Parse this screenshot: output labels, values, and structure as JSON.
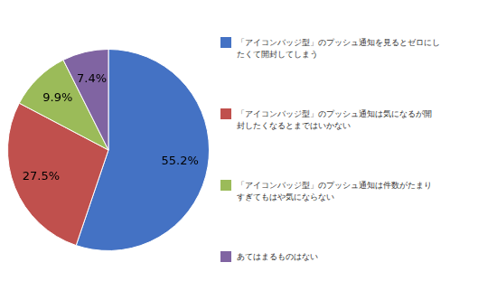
{
  "chart_data": {
    "type": "pie",
    "categories": [
      "「アイコンバッジ型」のプッシュ通知を見るとゼロにし\nたくて開封してしまう",
      "「アイコンバッジ型」のプッシュ通知は気になるが開\n封したくなるとまではいかない",
      "「アイコンバッジ型」のプッシュ通知は件数がたまり\nすぎてもはや気にならない",
      "あてはまるものはない"
    ],
    "values": [
      55.2,
      27.5,
      9.9,
      7.4
    ],
    "value_labels": [
      "55.2%",
      "27.5%",
      "9.9%",
      "7.4%"
    ],
    "colors": [
      "#4472C4",
      "#C0504D",
      "#9BBB59",
      "#8064A2"
    ],
    "data_labels": true,
    "legend": "right"
  }
}
